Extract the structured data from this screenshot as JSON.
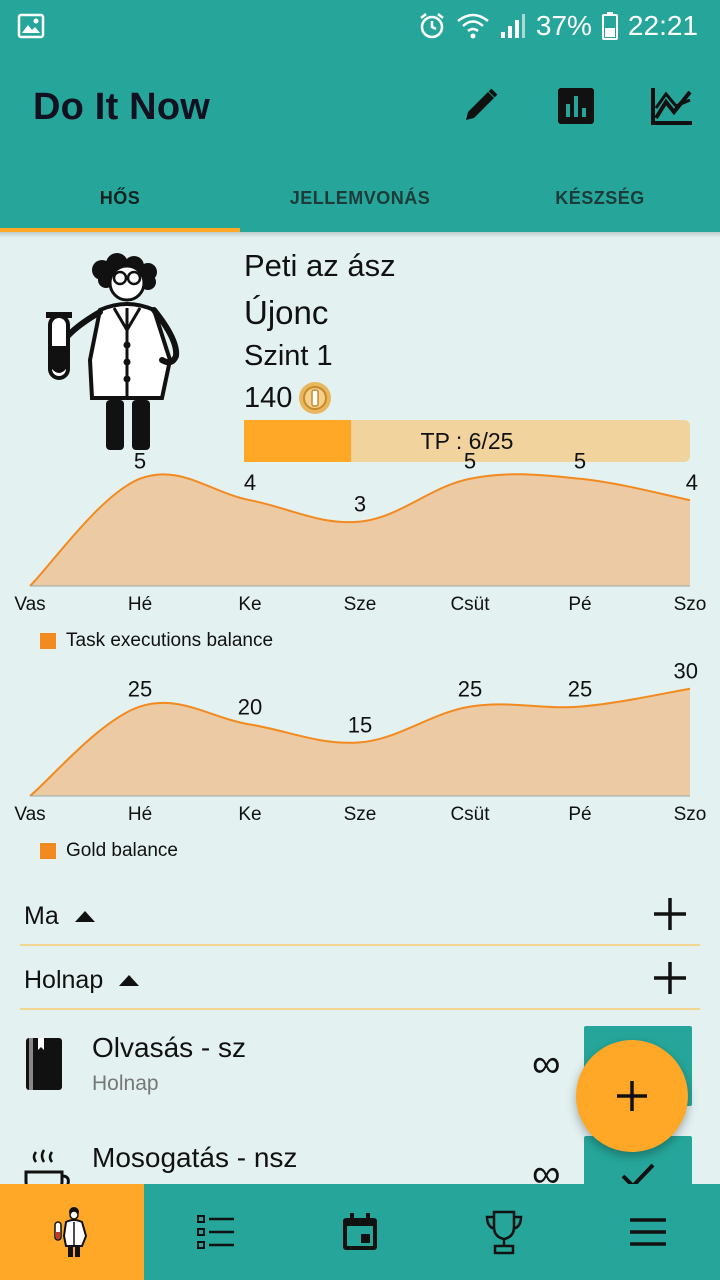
{
  "status_bar": {
    "battery": "37%",
    "time": "22:21",
    "icons": [
      "image-icon",
      "alarm-icon",
      "wifi-icon",
      "signal-icon",
      "battery-icon"
    ]
  },
  "app_bar": {
    "title": "Do It Now",
    "actions": [
      "edit-icon",
      "bar-chart-icon",
      "line-chart-icon"
    ]
  },
  "tabs": [
    {
      "label": "HŐS",
      "active": true
    },
    {
      "label": "JELLEMVONÁS",
      "active": false
    },
    {
      "label": "KÉSZSÉG",
      "active": false
    }
  ],
  "hero": {
    "name": "Peti az ász",
    "rank": "Újonc",
    "level": "Szint 1",
    "gold": "140",
    "tp_label": "TP : 6/25",
    "tp_progress": 0.24
  },
  "chart_data": [
    {
      "type": "area",
      "categories": [
        "Vas",
        "Hé",
        "Ke",
        "Sze",
        "Csüt",
        "Pé",
        "Szo"
      ],
      "series": [
        {
          "name": "Task executions balance",
          "values": [
            0,
            5,
            4,
            3,
            5,
            5,
            4
          ],
          "labels": [
            "",
            "5",
            "4",
            "3",
            "5",
            "5",
            "4"
          ]
        }
      ],
      "ylim": [
        0,
        5.5
      ],
      "grid": false,
      "legend": "bottom-left",
      "color": "#f28a1f",
      "fill": "#ebcaa4"
    },
    {
      "type": "area",
      "categories": [
        "Vas",
        "Hé",
        "Ke",
        "Sze",
        "Csüt",
        "Pé",
        "Szo"
      ],
      "series": [
        {
          "name": "Gold balance",
          "values": [
            0,
            25,
            20,
            15,
            25,
            25,
            30
          ],
          "labels": [
            "",
            "25",
            "20",
            "15",
            "25",
            "25",
            "30"
          ]
        }
      ],
      "ylim": [
        0,
        33
      ],
      "grid": false,
      "legend": "bottom-left",
      "color": "#f28a1f",
      "fill": "#ebcaa4"
    }
  ],
  "sections": [
    {
      "label": "Ma"
    },
    {
      "label": "Holnap"
    }
  ],
  "tasks": [
    {
      "name": "Olvasás - sz",
      "sub": "Holnap",
      "repeat": "∞",
      "icon": "book-icon"
    },
    {
      "name": "Mosogatás - nsz",
      "sub": "",
      "repeat": "∞",
      "icon": "cup-icon"
    }
  ],
  "bottom_nav": [
    {
      "name": "hero-icon",
      "active": true
    },
    {
      "name": "list-icon",
      "active": false
    },
    {
      "name": "calendar-icon",
      "active": false
    },
    {
      "name": "trophy-icon",
      "active": false
    },
    {
      "name": "menu-icon",
      "active": false
    }
  ],
  "colors": {
    "primary": "#26a69a",
    "accent": "#ffa726",
    "background": "#e3f1f1",
    "chart_line": "#f28a1f",
    "chart_fill": "#ebcaa4"
  }
}
